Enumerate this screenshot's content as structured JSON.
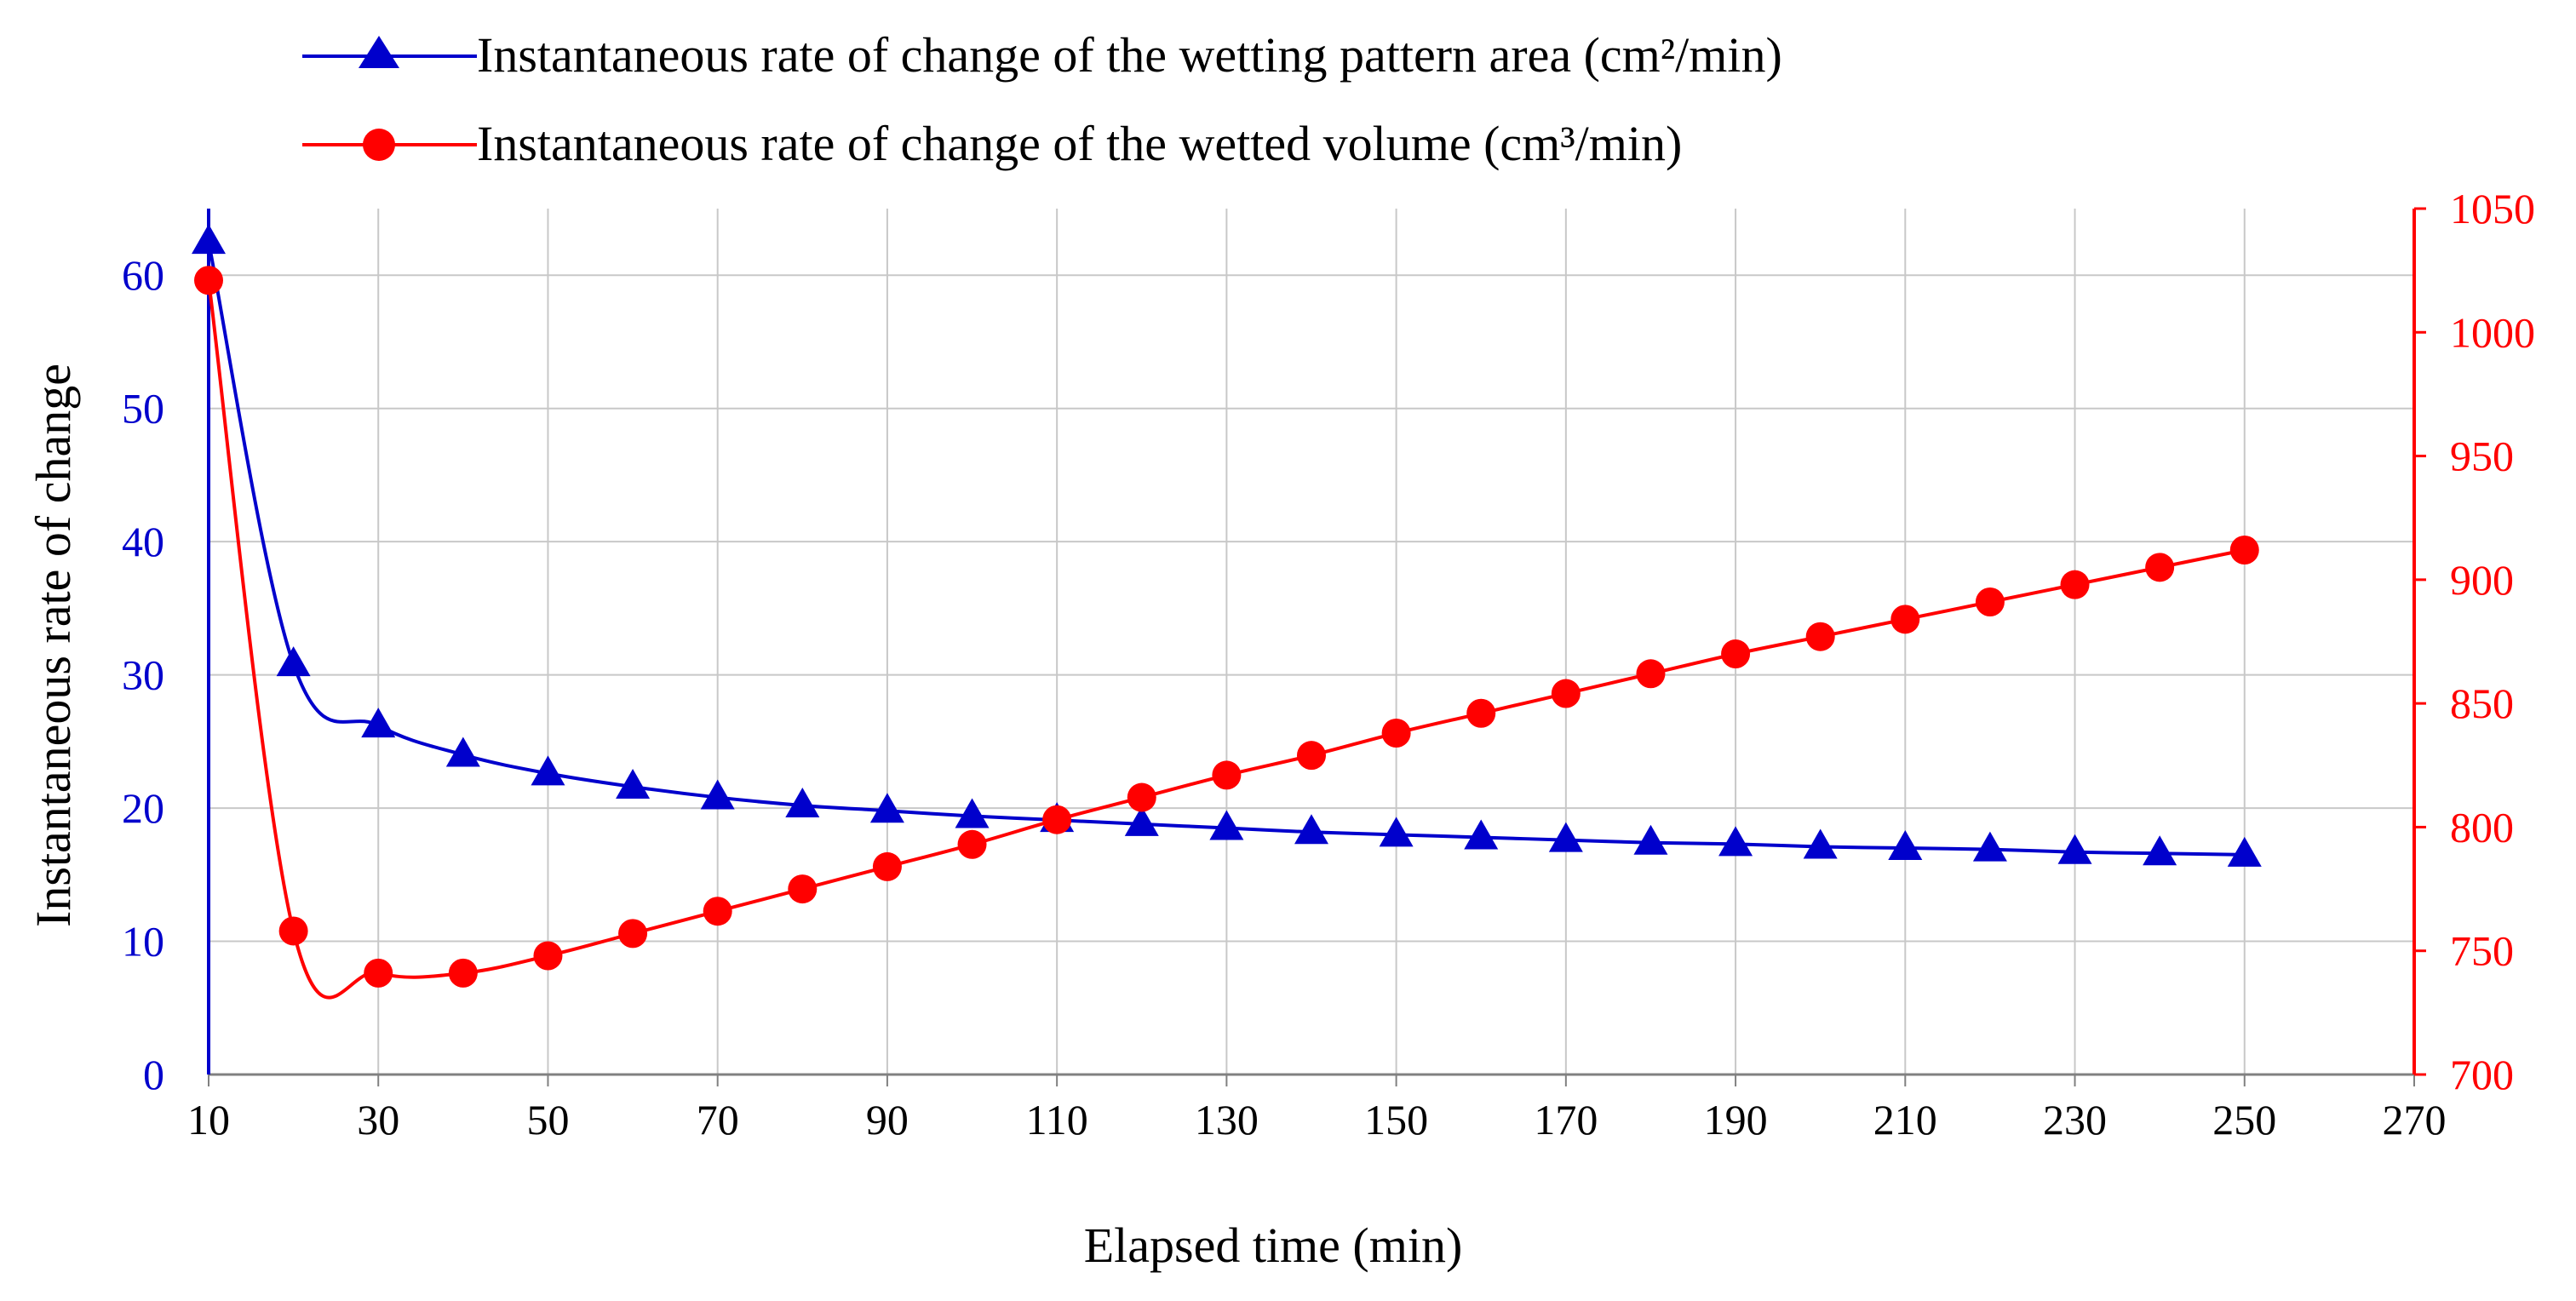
{
  "chart_data": {
    "type": "line",
    "title": "",
    "xlabel": "Elapsed time (min)",
    "ylabel": "Instantaneous rate of change",
    "y2label": "",
    "xlim": [
      10,
      270
    ],
    "x_ticks": [
      10,
      30,
      50,
      70,
      90,
      110,
      130,
      150,
      170,
      190,
      210,
      230,
      250,
      270
    ],
    "ylim": [
      0,
      65
    ],
    "y_ticks": [
      0,
      10,
      20,
      30,
      40,
      50,
      60
    ],
    "y2lim": [
      700,
      1050
    ],
    "y2_ticks": [
      700,
      750,
      800,
      850,
      900,
      950,
      1000,
      1050
    ],
    "grid": true,
    "legend_position": "top",
    "x": [
      10,
      20,
      30,
      40,
      50,
      60,
      70,
      80,
      90,
      100,
      110,
      120,
      130,
      140,
      150,
      160,
      170,
      180,
      190,
      200,
      210,
      220,
      230,
      240,
      250
    ],
    "series": [
      {
        "name": "Instantaneous rate of change of the wetting pattern area (cm²/min)",
        "axis": "left",
        "color": "#0000CC",
        "marker": "triangle",
        "values": [
          62.5,
          30.8,
          26.2,
          24.0,
          22.6,
          21.6,
          20.8,
          20.2,
          19.8,
          19.4,
          19.1,
          18.8,
          18.5,
          18.2,
          18.0,
          17.8,
          17.6,
          17.4,
          17.3,
          17.1,
          17.0,
          16.9,
          16.7,
          16.6,
          16.5
        ]
      },
      {
        "name": "Instantaneous rate of change of the wetted volume (cm³/min)",
        "axis": "right",
        "color": "#FF0000",
        "marker": "circle",
        "values": [
          1021,
          758,
          741,
          741,
          748,
          757,
          766,
          775,
          784,
          793,
          803,
          812,
          821,
          829,
          838,
          846,
          854,
          862,
          870,
          877,
          884,
          891,
          898,
          905,
          912
        ]
      }
    ]
  }
}
